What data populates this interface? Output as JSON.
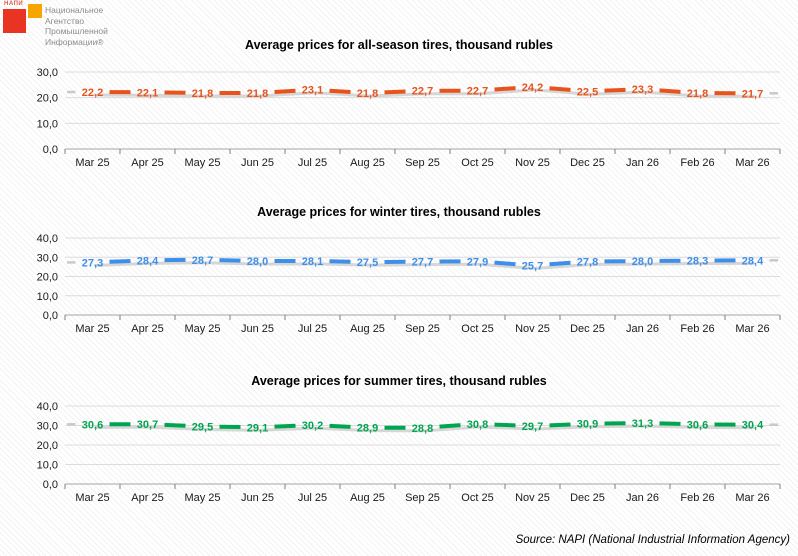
{
  "logo": {
    "mark_text": "НАПИ",
    "lines": [
      "Национальное",
      "Агентство",
      "Промышленной",
      "Информации®"
    ],
    "colors": {
      "red_square": "#EA3423",
      "orange_square": "#F7A600",
      "text": "#8C8C8C"
    }
  },
  "source": "Source: NAPI (National Industrial Information Agency)",
  "chart_data": [
    {
      "type": "line",
      "title": "Average prices for all-season tires, thousand rubles",
      "categories": [
        "Mar 25",
        "Apr 25",
        "May 25",
        "Jun 25",
        "Jul 25",
        "Aug 25",
        "Sep 25",
        "Oct 25",
        "Nov 25",
        "Dec 25",
        "Jan 26",
        "Feb 26",
        "Mar 26"
      ],
      "values": [
        22.2,
        22.1,
        21.8,
        21.8,
        23.1,
        21.8,
        22.7,
        22.7,
        24.2,
        22.5,
        23.3,
        21.8,
        21.7
      ],
      "ylim": [
        0,
        30
      ],
      "yticks": [
        0,
        10,
        20,
        30
      ],
      "line_color": "#E8531C",
      "shadow_color": "#D6D6D6",
      "grid": true,
      "legend": "none",
      "decimal_separator": ",",
      "xlabel": "",
      "ylabel": ""
    },
    {
      "type": "line",
      "title": "Average prices for winter tires, thousand rubles",
      "categories": [
        "Mar 25",
        "Apr 25",
        "May 25",
        "Jun 25",
        "Jul 25",
        "Aug 25",
        "Sep 25",
        "Oct 25",
        "Nov 25",
        "Dec 25",
        "Jan 26",
        "Feb 26",
        "Mar 26"
      ],
      "values": [
        27.3,
        28.4,
        28.7,
        28.0,
        28.1,
        27.5,
        27.7,
        27.9,
        25.7,
        27.8,
        28.0,
        28.3,
        28.4
      ],
      "ylim": [
        0,
        40
      ],
      "yticks": [
        0,
        10,
        20,
        30,
        40
      ],
      "line_color": "#3E8FE9",
      "shadow_color": "#D6D6D6",
      "grid": true,
      "legend": "none",
      "decimal_separator": ",",
      "xlabel": "",
      "ylabel": ""
    },
    {
      "type": "line",
      "title": "Average prices for summer tires, thousand rubles",
      "categories": [
        "Mar 25",
        "Apr 25",
        "May 25",
        "Jun 25",
        "Jul 25",
        "Aug 25",
        "Sep 25",
        "Oct 25",
        "Nov 25",
        "Dec 25",
        "Jan 26",
        "Feb 26",
        "Mar 26"
      ],
      "values": [
        30.6,
        30.7,
        29.5,
        29.1,
        30.2,
        28.9,
        28.8,
        30.8,
        29.7,
        30.9,
        31.3,
        30.6,
        30.4
      ],
      "ylim": [
        0,
        40
      ],
      "yticks": [
        0,
        10,
        20,
        30,
        40
      ],
      "line_color": "#00A550",
      "shadow_color": "#D6D6D6",
      "grid": true,
      "legend": "none",
      "decimal_separator": ",",
      "xlabel": "",
      "ylabel": ""
    }
  ]
}
